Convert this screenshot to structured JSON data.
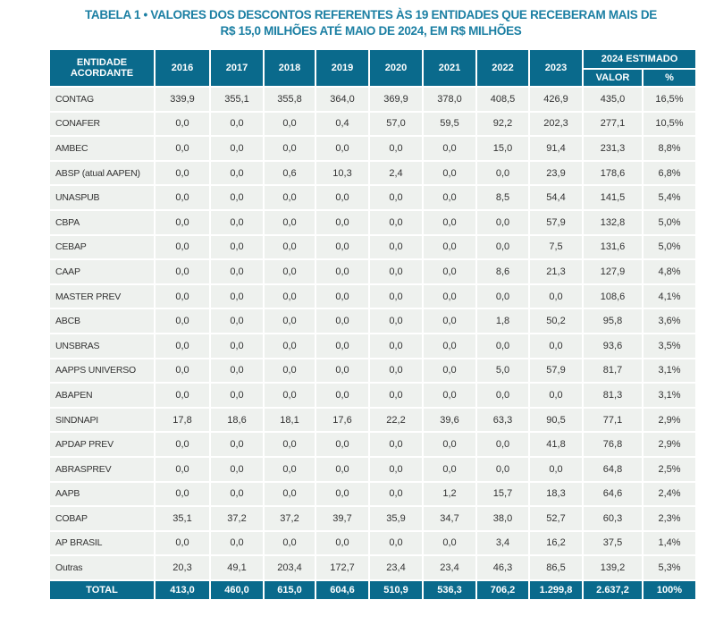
{
  "title_line1": "TABELA 1 • VALORES DOS DESCONTOS REFERENTES ÀS 19 ENTIDADES QUE RECEBERAM MAIS DE",
  "title_line2": "R$ 15,0 MILHÕES ATÉ MAIO DE 2024, EM R$ MILHÕES",
  "header": {
    "entity": "ENTIDADE ACORDANTE",
    "years": [
      "2016",
      "2017",
      "2018",
      "2019",
      "2020",
      "2021",
      "2022",
      "2023"
    ],
    "estimate_group": "2024 ESTIMADO",
    "valor": "VALOR",
    "pct": "%"
  },
  "rows": [
    [
      "CONTAG",
      "339,9",
      "355,1",
      "355,8",
      "364,0",
      "369,9",
      "378,0",
      "408,5",
      "426,9",
      "435,0",
      "16,5%"
    ],
    [
      "CONAFER",
      "0,0",
      "0,0",
      "0,0",
      "0,4",
      "57,0",
      "59,5",
      "92,2",
      "202,3",
      "277,1",
      "10,5%"
    ],
    [
      "AMBEC",
      "0,0",
      "0,0",
      "0,0",
      "0,0",
      "0,0",
      "0,0",
      "15,0",
      "91,4",
      "231,3",
      "8,8%"
    ],
    [
      "ABSP (atual AAPEN)",
      "0,0",
      "0,0",
      "0,6",
      "10,3",
      "2,4",
      "0,0",
      "0,0",
      "23,9",
      "178,6",
      "6,8%"
    ],
    [
      "UNASPUB",
      "0,0",
      "0,0",
      "0,0",
      "0,0",
      "0,0",
      "0,0",
      "8,5",
      "54,4",
      "141,5",
      "5,4%"
    ],
    [
      "CBPA",
      "0,0",
      "0,0",
      "0,0",
      "0,0",
      "0,0",
      "0,0",
      "0,0",
      "57,9",
      "132,8",
      "5,0%"
    ],
    [
      "CEBAP",
      "0,0",
      "0,0",
      "0,0",
      "0,0",
      "0,0",
      "0,0",
      "0,0",
      "7,5",
      "131,6",
      "5,0%"
    ],
    [
      "CAAP",
      "0,0",
      "0,0",
      "0,0",
      "0,0",
      "0,0",
      "0,0",
      "8,6",
      "21,3",
      "127,9",
      "4,8%"
    ],
    [
      "MASTER PREV",
      "0,0",
      "0,0",
      "0,0",
      "0,0",
      "0,0",
      "0,0",
      "0,0",
      "0,0",
      "108,6",
      "4,1%"
    ],
    [
      "ABCB",
      "0,0",
      "0,0",
      "0,0",
      "0,0",
      "0,0",
      "0,0",
      "1,8",
      "50,2",
      "95,8",
      "3,6%"
    ],
    [
      "UNSBRAS",
      "0,0",
      "0,0",
      "0,0",
      "0,0",
      "0,0",
      "0,0",
      "0,0",
      "0,0",
      "93,6",
      "3,5%"
    ],
    [
      "AAPPS UNIVERSO",
      "0,0",
      "0,0",
      "0,0",
      "0,0",
      "0,0",
      "0,0",
      "5,0",
      "57,9",
      "81,7",
      "3,1%"
    ],
    [
      "ABAPEN",
      "0,0",
      "0,0",
      "0,0",
      "0,0",
      "0,0",
      "0,0",
      "0,0",
      "0,0",
      "81,3",
      "3,1%"
    ],
    [
      "SINDNAPI",
      "17,8",
      "18,6",
      "18,1",
      "17,6",
      "22,2",
      "39,6",
      "63,3",
      "90,5",
      "77,1",
      "2,9%"
    ],
    [
      "APDAP PREV",
      "0,0",
      "0,0",
      "0,0",
      "0,0",
      "0,0",
      "0,0",
      "0,0",
      "41,8",
      "76,8",
      "2,9%"
    ],
    [
      "ABRASPREV",
      "0,0",
      "0,0",
      "0,0",
      "0,0",
      "0,0",
      "0,0",
      "0,0",
      "0,0",
      "64,8",
      "2,5%"
    ],
    [
      "AAPB",
      "0,0",
      "0,0",
      "0,0",
      "0,0",
      "0,0",
      "1,2",
      "15,7",
      "18,3",
      "64,6",
      "2,4%"
    ],
    [
      "COBAP",
      "35,1",
      "37,2",
      "37,2",
      "39,7",
      "35,9",
      "34,7",
      "38,0",
      "52,7",
      "60,3",
      "2,3%"
    ],
    [
      "AP BRASIL",
      "0,0",
      "0,0",
      "0,0",
      "0,0",
      "0,0",
      "0,0",
      "3,4",
      "16,2",
      "37,5",
      "1,4%"
    ],
    [
      "Outras",
      "20,3",
      "49,1",
      "203,4",
      "172,7",
      "23,4",
      "23,4",
      "46,3",
      "86,5",
      "139,2",
      "5,3%"
    ]
  ],
  "total": [
    "TOTAL",
    "413,0",
    "460,0",
    "615,0",
    "604,6",
    "510,9",
    "536,3",
    "706,2",
    "1.299,8",
    "2.637,2",
    "100%"
  ],
  "colors": {
    "header_bg": "#0a6a8c",
    "title": "#1b7fa3",
    "row_bg": "#eef1ee"
  }
}
